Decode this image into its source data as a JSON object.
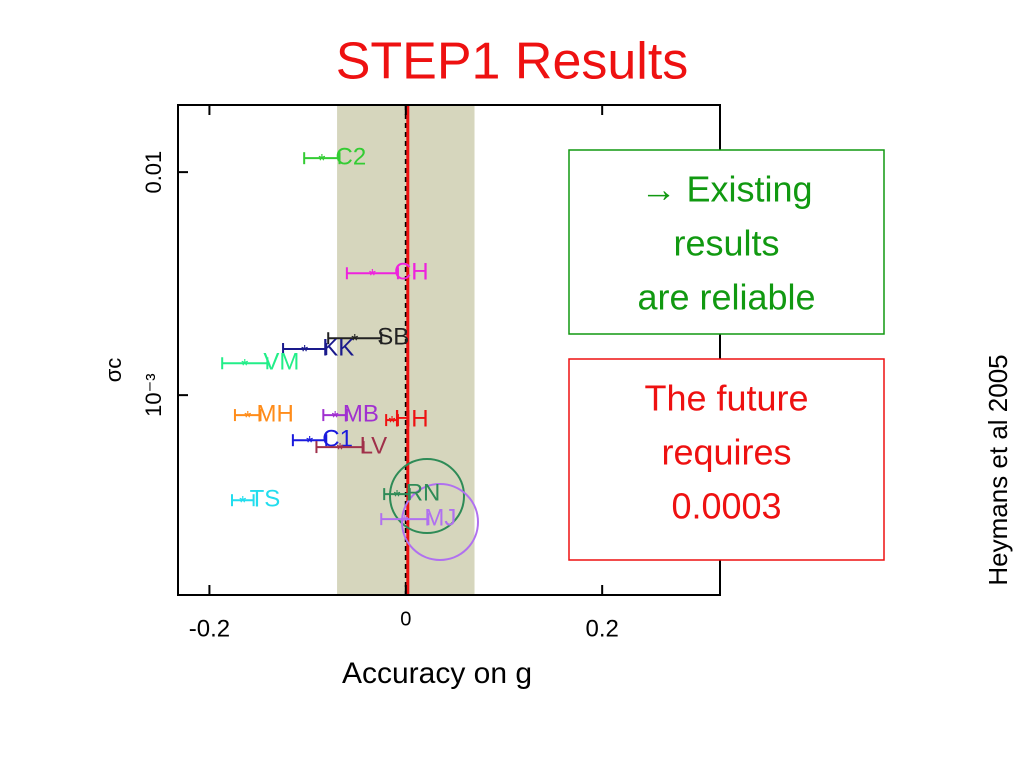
{
  "title": "STEP1 Results",
  "credit": "Heymans et al 2005",
  "chart_data": {
    "type": "scatter",
    "xlabel": "Accuracy on g",
    "ylabel": "σc",
    "xlim": [
      -0.232,
      0.32
    ],
    "xticks": [
      -0.2,
      0,
      0.2
    ],
    "ylim": [
      0.000127,
      0.02
    ],
    "yticks": [
      0.01,
      {
        "value": 0.001,
        "label": "10⁻³"
      }
    ],
    "ylog": true,
    "shaded_range": [
      -0.07,
      0.07
    ],
    "reference_line": 0,
    "series": [
      {
        "name": "C2",
        "color": "#33cc33",
        "x": [
          -0.0855
        ],
        "values": [
          0.01155
        ],
        "xerr": [
          0.018
        ]
      },
      {
        "name": "CH",
        "color": "#ee22dd",
        "x": [
          -0.034
        ],
        "values": [
          0.00352
        ],
        "xerr": [
          0.026
        ]
      },
      {
        "name": "SB",
        "color": "#222222",
        "x": [
          -0.052
        ],
        "values": [
          0.0018
        ],
        "xerr": [
          0.027
        ]
      },
      {
        "name": "KK",
        "color": "#1a1a8c",
        "x": [
          -0.103
        ],
        "values": [
          0.00161
        ],
        "xerr": [
          0.022
        ]
      },
      {
        "name": "VM",
        "color": "#22ee88",
        "x": [
          -0.164
        ],
        "values": [
          0.00139
        ],
        "xerr": [
          0.023
        ]
      },
      {
        "name": "MH",
        "color": "#ff8c1a",
        "x": [
          -0.161
        ],
        "values": [
          0.000814
        ],
        "xerr": [
          0.013
        ]
      },
      {
        "name": "MB",
        "color": "#a030d0",
        "x": [
          -0.072
        ],
        "values": [
          0.000814
        ],
        "xerr": [
          0.012
        ]
      },
      {
        "name": "HH",
        "color": "#ee1111",
        "x": [
          -0.014
        ],
        "values": [
          0.000773
        ],
        "xerr": [
          0.006
        ]
      },
      {
        "name": "C1",
        "color": "#1a1add",
        "x": [
          -0.098
        ],
        "values": [
          0.000628
        ],
        "xerr": [
          0.017
        ]
      },
      {
        "name": "LV",
        "color": "#a0304a",
        "x": [
          -0.067
        ],
        "values": [
          0.000585
        ],
        "xerr": [
          0.024
        ]
      },
      {
        "name": "TS",
        "color": "#22ddee",
        "x": [
          -0.166
        ],
        "values": [
          0.000338
        ],
        "xerr": [
          0.011
        ]
      },
      {
        "name": "RN",
        "color": "#2e8b57",
        "x": [
          -0.009
        ],
        "values": [
          0.00036
        ],
        "xerr": [
          0.013
        ]
      },
      {
        "name": "MJ",
        "color": "#b070f0",
        "x": [
          -0.001
        ],
        "values": [
          0.000278
        ],
        "xerr": [
          0.024
        ]
      }
    ],
    "annotations": [
      {
        "lines": [
          "→ Existing",
          "results",
          "are reliable"
        ],
        "color": "#119911"
      },
      {
        "lines": [
          "The future",
          "requires",
          "0.0003"
        ],
        "color": "#ee1111"
      }
    ]
  }
}
